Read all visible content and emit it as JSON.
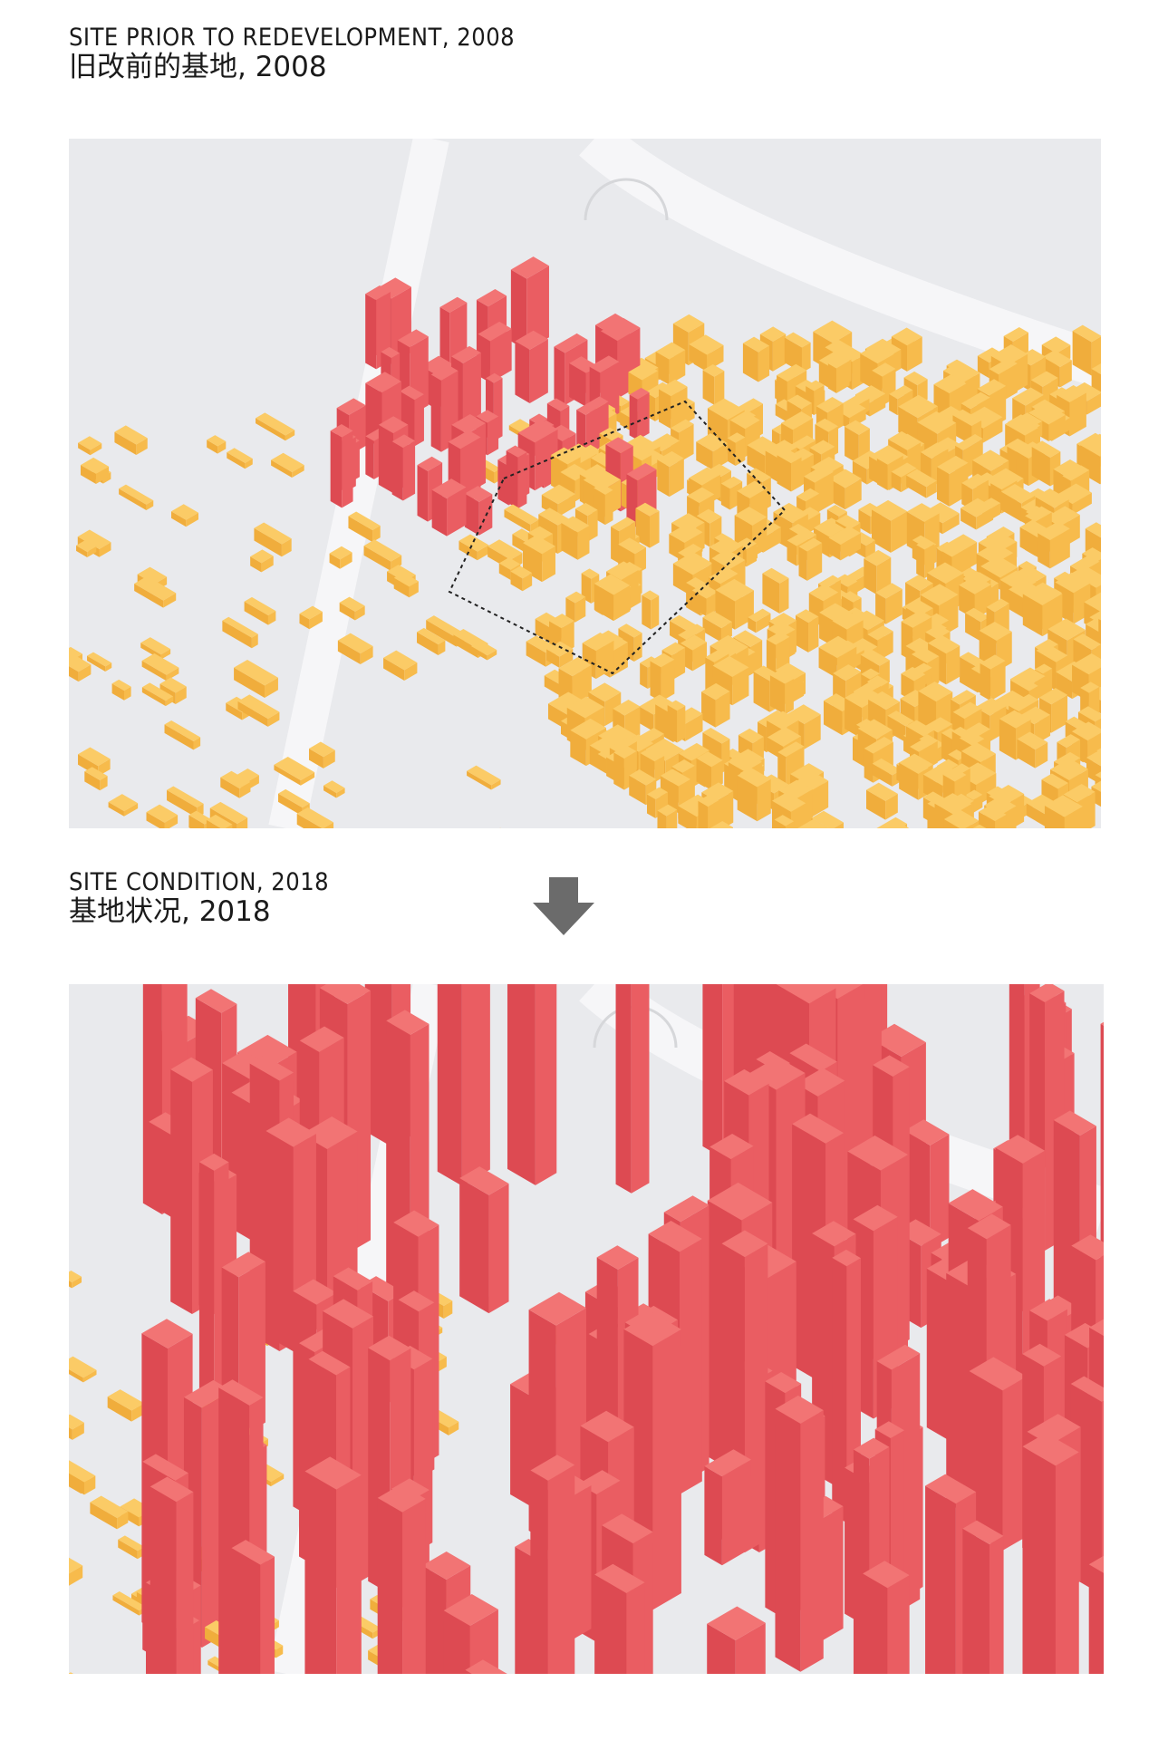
{
  "sections": [
    {
      "title_en": "SITE PRIOR TO REDEVELOPMENT, 2008",
      "title_zh": "旧改前的基地, 2008"
    },
    {
      "title_en": "SITE CONDITION, 2018",
      "title_zh": "基地状况, 2018"
    }
  ]
}
